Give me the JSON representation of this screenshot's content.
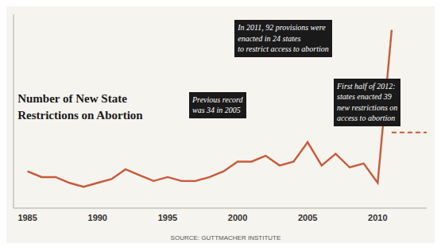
{
  "chart_data": {
    "type": "line",
    "title": "Number of New State\nRestrictions on Abortion",
    "x": [
      1985,
      1986,
      1987,
      1988,
      1989,
      1990,
      1991,
      1992,
      1993,
      1994,
      1995,
      1996,
      1997,
      1998,
      1999,
      2000,
      2001,
      2002,
      2003,
      2004,
      2005,
      2006,
      2007,
      2008,
      2009,
      2010,
      2011,
      2013.5
    ],
    "series": [
      {
        "color": "#c8593a",
        "line_style": "solid",
        "values": [
          19,
          16,
          16,
          13,
          11,
          13,
          15,
          20,
          17,
          14,
          16,
          14,
          14,
          16,
          19,
          24,
          24,
          27,
          22,
          24,
          34,
          22,
          28,
          21,
          23,
          13,
          92,
          null
        ]
      },
      {
        "color": "#c8593a",
        "line_style": "dashed",
        "values": [
          null,
          null,
          null,
          null,
          null,
          null,
          null,
          null,
          null,
          null,
          null,
          null,
          null,
          null,
          null,
          null,
          null,
          null,
          null,
          null,
          null,
          null,
          null,
          null,
          null,
          null,
          39,
          39
        ]
      }
    ],
    "annotations": [
      "In 2011, 92 provisions were\nenacted in 24 states\nto restrict access to abortion",
      "Previous record\nwas 34 in 2005",
      "First half of 2012:\nstates enacted 39\nnew restrictions on\naccess to abortion",
      "SOURCE: GUTTMACHER INSTITUTE"
    ],
    "xlim": [
      1984,
      2013.5
    ],
    "ylim": [
      0,
      100
    ],
    "xticks": [
      1985,
      1990,
      1995,
      2000,
      2005,
      2010
    ],
    "grid": false,
    "tick_labels": "x"
  }
}
